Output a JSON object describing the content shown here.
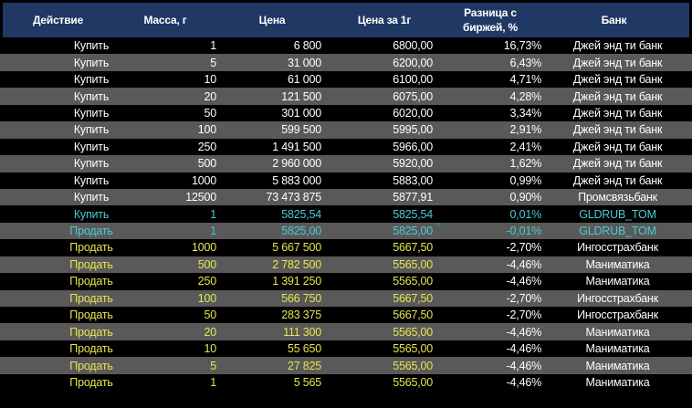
{
  "header": {
    "action": "Действие",
    "mass": "Масса, г",
    "price": "Цена",
    "price_per_g": "Цена за 1г",
    "diff": "Разница с биржей, %",
    "bank": "Банк"
  },
  "rows": [
    {
      "type": "buy",
      "action": "Купить",
      "mass": "1",
      "price": "6 800",
      "per_g": "6800,00",
      "diff": "16,73%",
      "bank": "Джей энд ти банк"
    },
    {
      "type": "buy",
      "action": "Купить",
      "mass": "5",
      "price": "31 000",
      "per_g": "6200,00",
      "diff": "6,43%",
      "bank": "Джей энд ти банк"
    },
    {
      "type": "buy",
      "action": "Купить",
      "mass": "10",
      "price": "61 000",
      "per_g": "6100,00",
      "diff": "4,71%",
      "bank": "Джей энд ти банк"
    },
    {
      "type": "buy",
      "action": "Купить",
      "mass": "20",
      "price": "121 500",
      "per_g": "6075,00",
      "diff": "4,28%",
      "bank": "Джей энд ти банк"
    },
    {
      "type": "buy",
      "action": "Купить",
      "mass": "50",
      "price": "301 000",
      "per_g": "6020,00",
      "diff": "3,34%",
      "bank": "Джей энд ти банк"
    },
    {
      "type": "buy",
      "action": "Купить",
      "mass": "100",
      "price": "599 500",
      "per_g": "5995,00",
      "diff": "2,91%",
      "bank": "Джей энд ти банк"
    },
    {
      "type": "buy",
      "action": "Купить",
      "mass": "250",
      "price": "1 491 500",
      "per_g": "5966,00",
      "diff": "2,41%",
      "bank": "Джей энд ти банк"
    },
    {
      "type": "buy",
      "action": "Купить",
      "mass": "500",
      "price": "2 960 000",
      "per_g": "5920,00",
      "diff": "1,62%",
      "bank": "Джей энд ти банк"
    },
    {
      "type": "buy",
      "action": "Купить",
      "mass": "1000",
      "price": "5 883 000",
      "per_g": "5883,00",
      "diff": "0,99%",
      "bank": "Джей энд ти банк"
    },
    {
      "type": "buy",
      "action": "Купить",
      "mass": "12500",
      "price": "73 473 875",
      "per_g": "5877,91",
      "diff": "0,90%",
      "bank": "Промсвязьбанк"
    },
    {
      "type": "exch",
      "action": "Купить",
      "mass": "1",
      "price": "5825,54",
      "per_g": "5825,54",
      "diff": "0,01%",
      "bank": "GLDRUB_TOM"
    },
    {
      "type": "exch",
      "action": "Продать",
      "mass": "1",
      "price": "5825,00",
      "per_g": "5825,00",
      "diff": "-0,01%",
      "bank": "GLDRUB_TOM"
    },
    {
      "type": "sell",
      "action": "Продать",
      "mass": "1000",
      "price": "5 667 500",
      "per_g": "5667,50",
      "diff": "-2,70%",
      "bank": "Ингосстрахбанк"
    },
    {
      "type": "sell",
      "action": "Продать",
      "mass": "500",
      "price": "2 782 500",
      "per_g": "5565,00",
      "diff": "-4,46%",
      "bank": "Маниматика"
    },
    {
      "type": "sell",
      "action": "Продать",
      "mass": "250",
      "price": "1 391 250",
      "per_g": "5565,00",
      "diff": "-4,46%",
      "bank": "Маниматика"
    },
    {
      "type": "sell",
      "action": "Продать",
      "mass": "100",
      "price": "566 750",
      "per_g": "5667,50",
      "diff": "-2,70%",
      "bank": "Ингосстрахбанк"
    },
    {
      "type": "sell",
      "action": "Продать",
      "mass": "50",
      "price": "283 375",
      "per_g": "5667,50",
      "diff": "-2,70%",
      "bank": "Ингосстрахбанк"
    },
    {
      "type": "sell",
      "action": "Продать",
      "mass": "20",
      "price": "111 300",
      "per_g": "5565,00",
      "diff": "-4,46%",
      "bank": "Маниматика"
    },
    {
      "type": "sell",
      "action": "Продать",
      "mass": "10",
      "price": "55 650",
      "per_g": "5565,00",
      "diff": "-4,46%",
      "bank": "Маниматика"
    },
    {
      "type": "sell",
      "action": "Продать",
      "mass": "5",
      "price": "27 825",
      "per_g": "5565,00",
      "diff": "-4,46%",
      "bank": "Маниматика"
    },
    {
      "type": "sell",
      "action": "Продать",
      "mass": "1",
      "price": "5 565",
      "per_g": "5565,00",
      "diff": "-4,46%",
      "bank": "Маниматика"
    }
  ]
}
